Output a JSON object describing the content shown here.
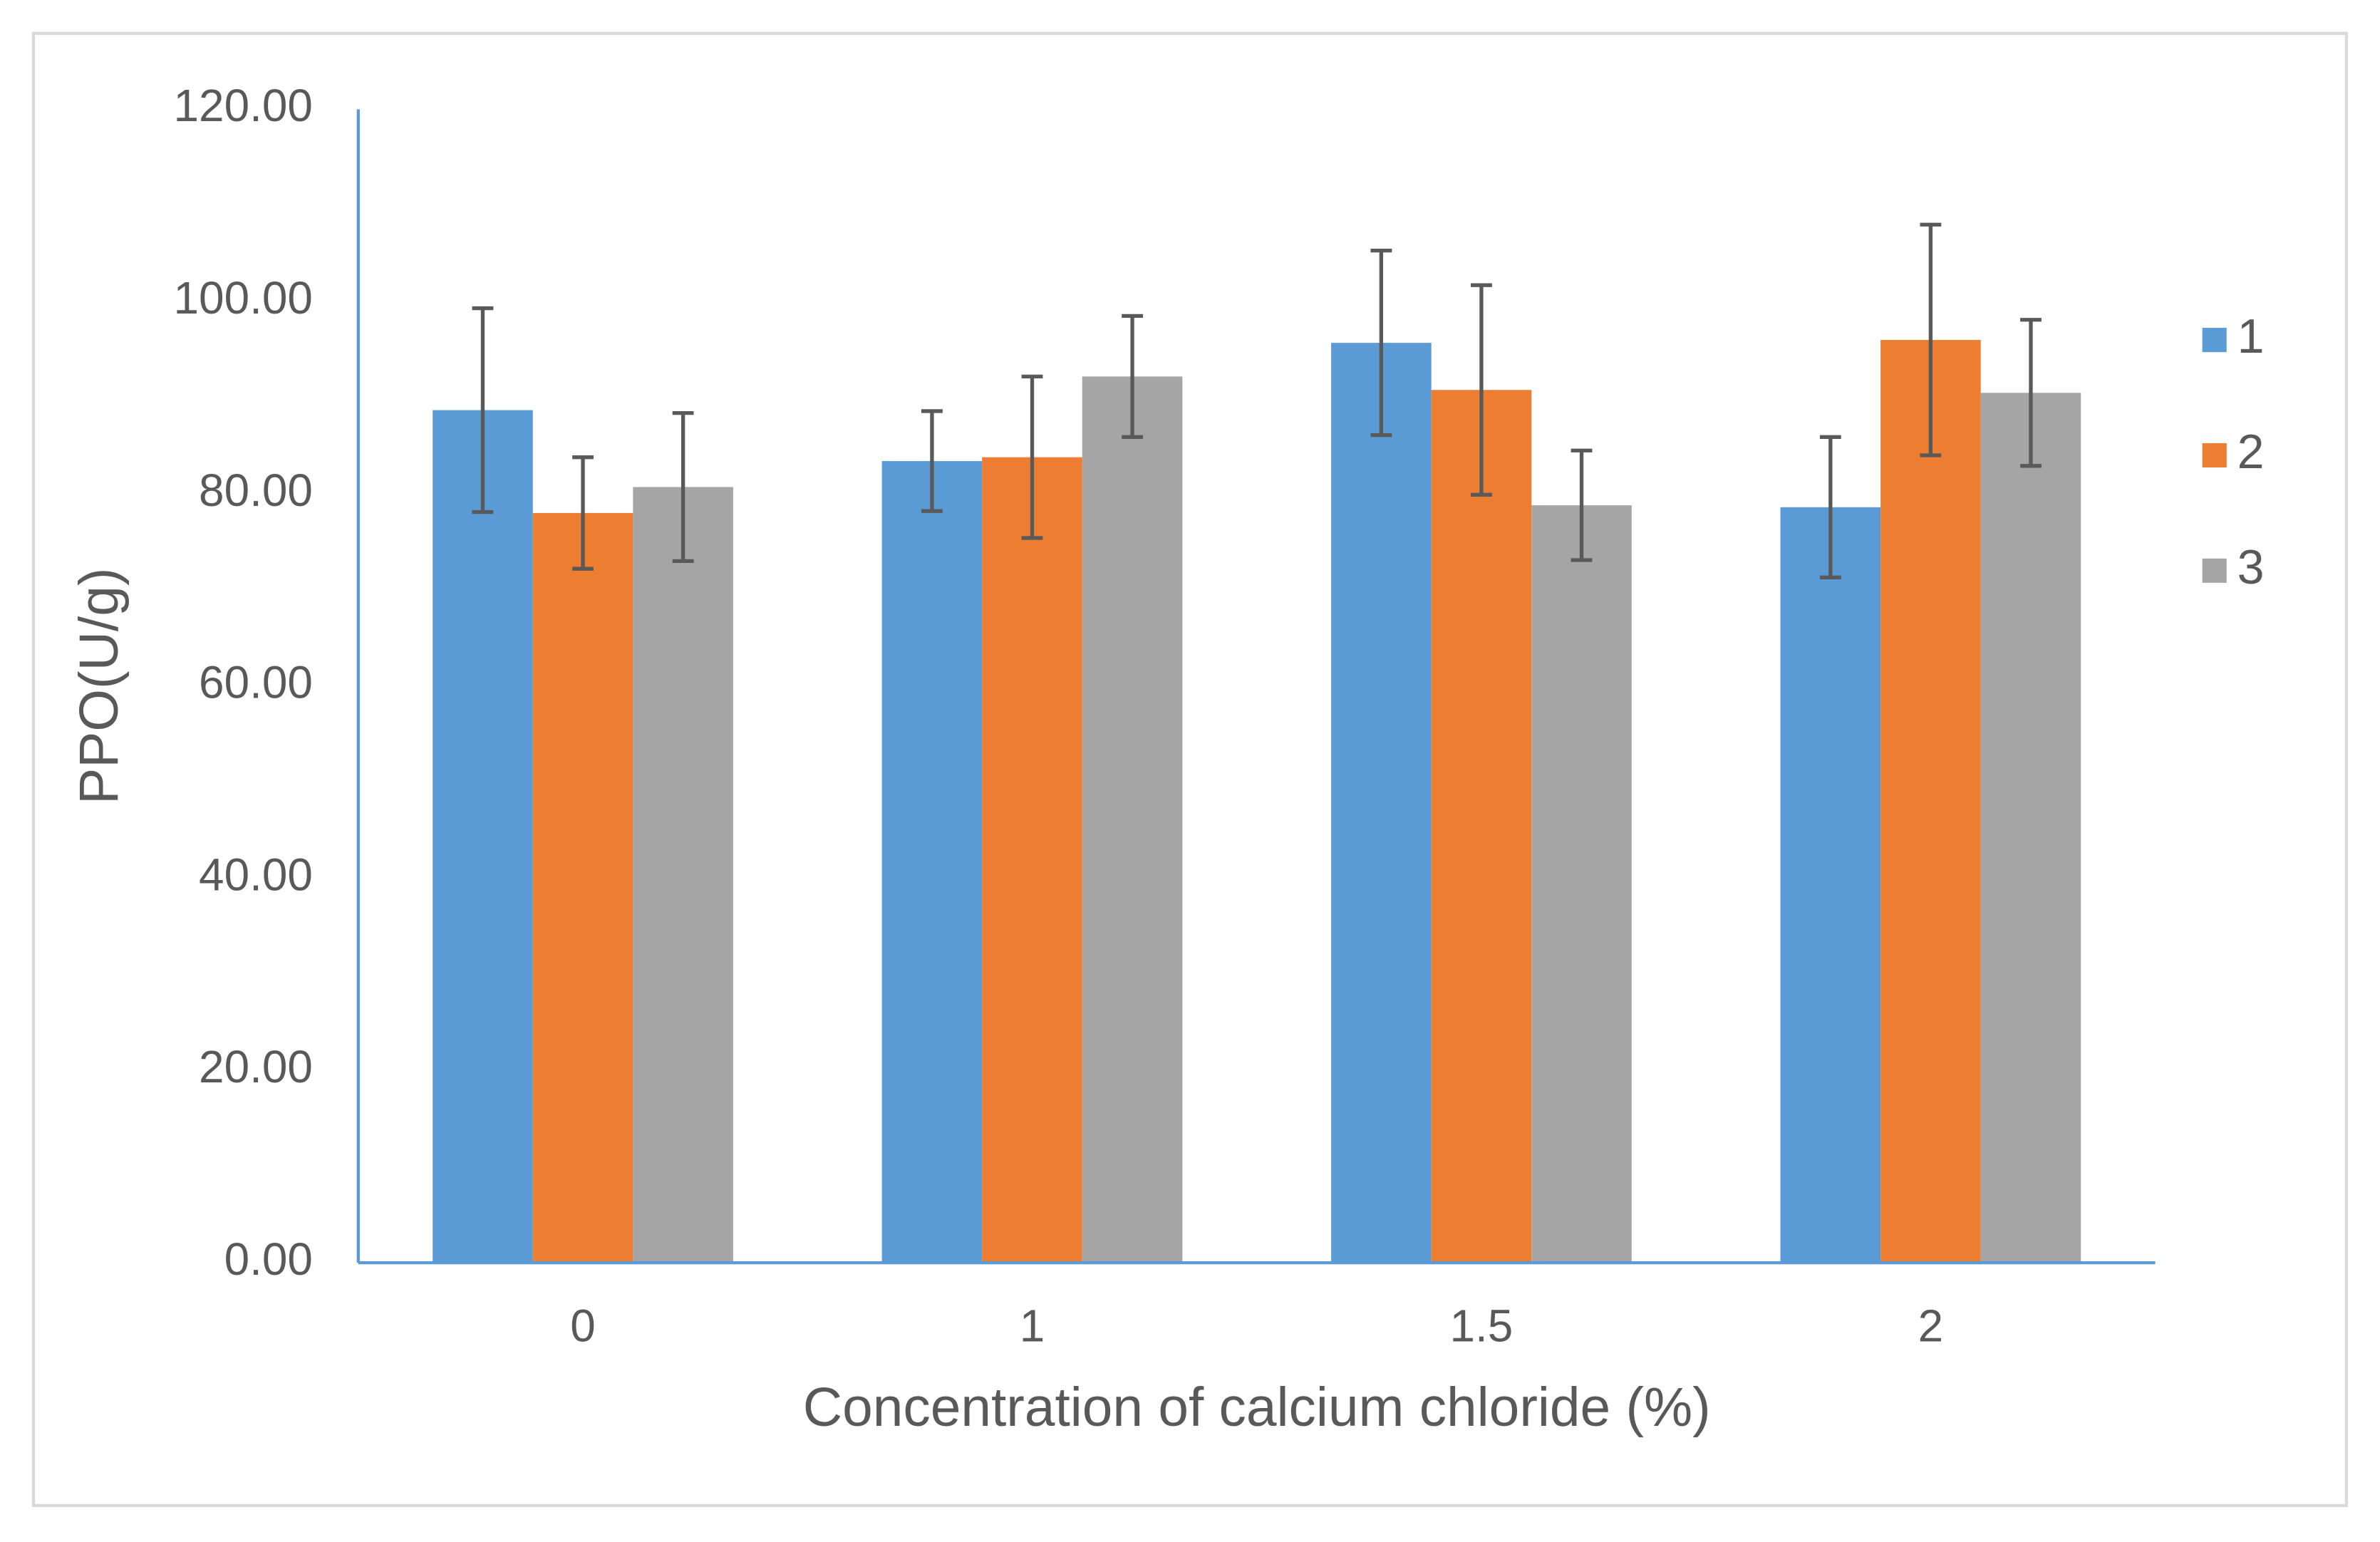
{
  "chart_data": {
    "type": "bar",
    "x_label": "Concentration of calcium chloride (%)",
    "y_label": "PPO(U/g)",
    "categories": [
      "0",
      "1",
      "1.5",
      "2"
    ],
    "series": [
      {
        "name": "1",
        "color": "#5b9bd5",
        "values": [
          88.7,
          83.4,
          95.7,
          78.6
        ],
        "errors": [
          10.6,
          5.2,
          9.6,
          7.3
        ]
      },
      {
        "name": "2",
        "color": "#ed7d31",
        "values": [
          78.0,
          83.8,
          90.8,
          96.0
        ],
        "errors": [
          5.8,
          8.4,
          10.9,
          12.0
        ]
      },
      {
        "name": "3",
        "color": "#a5a5a5",
        "values": [
          80.7,
          92.2,
          78.8,
          90.5
        ],
        "errors": [
          7.7,
          6.3,
          5.7,
          7.6
        ]
      }
    ],
    "ylim": [
      0,
      120
    ],
    "yticks": [
      {
        "value": 0,
        "label": "0.00"
      },
      {
        "value": 20,
        "label": "20.00"
      },
      {
        "value": 40,
        "label": "40.00"
      },
      {
        "value": 60,
        "label": "60.00"
      },
      {
        "value": 80,
        "label": "80.00"
      },
      {
        "value": 100,
        "label": "100.00"
      },
      {
        "value": 120,
        "label": "120.00"
      }
    ],
    "grid": false,
    "legend": "right"
  }
}
